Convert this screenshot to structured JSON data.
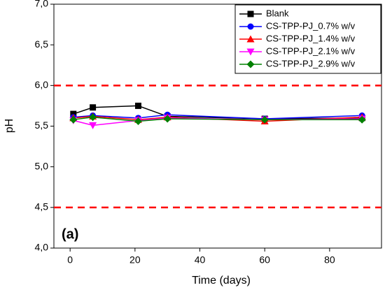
{
  "chart_data": {
    "type": "line",
    "xlabel": "Time (days)",
    "ylabel": "pH",
    "annotation": "(a)",
    "x": [
      1,
      7,
      21,
      30,
      60,
      90
    ],
    "series": [
      {
        "name": "Blank",
        "color": "#000000",
        "marker": "square",
        "values": [
          5.65,
          5.73,
          5.75,
          5.62,
          5.59,
          5.6
        ]
      },
      {
        "name": "CS-TPP-PJ_0.7% w/v",
        "color": "#0000ff",
        "marker": "circle",
        "values": [
          5.61,
          5.63,
          5.6,
          5.64,
          5.59,
          5.63
        ]
      },
      {
        "name": "CS-TPP-PJ_1.4% w/v",
        "color": "#ff0000",
        "marker": "triangle-up",
        "values": [
          5.6,
          5.62,
          5.58,
          5.61,
          5.56,
          5.61
        ]
      },
      {
        "name": "CS-TPP-PJ_2.1% w/v",
        "color": "#ff00ff",
        "marker": "triangle-down",
        "values": [
          5.57,
          5.51,
          5.57,
          5.6,
          5.58,
          5.59
        ]
      },
      {
        "name": "CS-TPP-PJ_2.9% w/v",
        "color": "#008000",
        "marker": "diamond",
        "values": [
          5.58,
          5.61,
          5.56,
          5.59,
          5.58,
          5.58
        ]
      }
    ],
    "hlines": [
      6.0,
      4.5
    ],
    "hline_color": "#ff0000",
    "xlim": [
      -5,
      96
    ],
    "xticks": [
      0,
      20,
      40,
      60,
      80
    ],
    "ylim": [
      4,
      7
    ],
    "yticks": [
      {
        "value": 4,
        "label": "4,0"
      },
      {
        "value": 4.5,
        "label": "4,5"
      },
      {
        "value": 5,
        "label": "5,0"
      },
      {
        "value": 5.5,
        "label": "5,5"
      },
      {
        "value": 6,
        "label": "6,0"
      },
      {
        "value": 6.5,
        "label": "6,5"
      },
      {
        "value": 7,
        "label": "7,0"
      }
    ],
    "legend": "top-right"
  }
}
